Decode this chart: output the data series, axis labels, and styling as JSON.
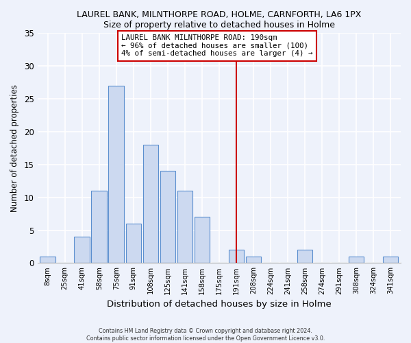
{
  "title1": "LAUREL BANK, MILNTHORPE ROAD, HOLME, CARNFORTH, LA6 1PX",
  "title2": "Size of property relative to detached houses in Holme",
  "xlabel": "Distribution of detached houses by size in Holme",
  "ylabel": "Number of detached properties",
  "bar_labels": [
    "8sqm",
    "25sqm",
    "41sqm",
    "58sqm",
    "75sqm",
    "91sqm",
    "108sqm",
    "125sqm",
    "141sqm",
    "158sqm",
    "175sqm",
    "191sqm",
    "208sqm",
    "224sqm",
    "241sqm",
    "258sqm",
    "274sqm",
    "291sqm",
    "308sqm",
    "324sqm",
    "341sqm"
  ],
  "bar_values": [
    1,
    0,
    4,
    11,
    27,
    6,
    18,
    14,
    11,
    7,
    0,
    2,
    1,
    0,
    0,
    2,
    0,
    0,
    1,
    0,
    1
  ],
  "bar_color": "#ccd9f0",
  "bar_edge_color": "#5b8fcf",
  "vline_color": "#cc0000",
  "annotation_title": "LAUREL BANK MILNTHORPE ROAD: 190sqm",
  "annotation_line1": "← 96% of detached houses are smaller (100)",
  "annotation_line2": "4% of semi-detached houses are larger (4) →",
  "annotation_box_color": "white",
  "annotation_box_edge_color": "#cc0000",
  "ylim": [
    0,
    35
  ],
  "yticks": [
    0,
    5,
    10,
    15,
    20,
    25,
    30,
    35
  ],
  "footer1": "Contains HM Land Registry data © Crown copyright and database right 2024.",
  "footer2": "Contains public sector information licensed under the Open Government Licence v3.0.",
  "bg_color": "#eef2fb",
  "grid_color": "#ffffff"
}
